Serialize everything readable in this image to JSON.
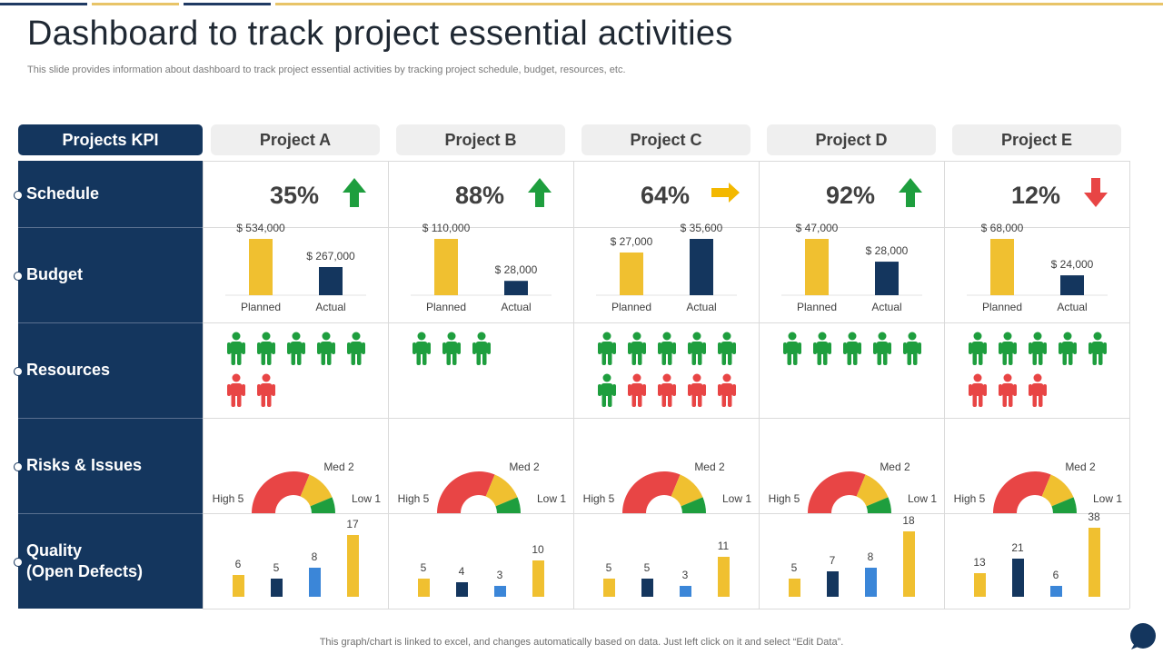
{
  "title": "Dashboard to track project essential activities",
  "subtitle": "This slide provides information about dashboard to track project essential activities by tracking project schedule, budget, resources, etc.",
  "kpi_header": "Projects KPI",
  "row_labels": {
    "schedule": "Schedule",
    "budget": "Budget",
    "resources": "Resources",
    "risks": "Risks & Issues",
    "quality_line1": "Quality",
    "quality_line2": "(Open Defects)"
  },
  "footnote": "This graph/chart is linked to excel,  and changes automatically based on data. Just left click on it and select “Edit Data”.",
  "colors": {
    "navy": "#14365e",
    "yellow": "#f0c030",
    "green": "#1e9e3e",
    "red": "#e84545",
    "arrow_yellow": "#f3b800",
    "blue": "#3b86d8",
    "topbar_navy": "#1f3a63",
    "topbar_gold": "#e8c468"
  },
  "icons": {
    "schedule_up": "arrow-up-icon",
    "schedule_right": "arrow-right-icon",
    "schedule_down": "arrow-down-icon",
    "person": "person-icon",
    "help": "chat-bubble-icon"
  },
  "chart_data": {
    "type": "table",
    "projects": [
      {
        "name": "Project A",
        "schedule": {
          "value": 35,
          "label": "35%",
          "trend": "up"
        },
        "budget": {
          "categories": [
            "Planned",
            "Actual"
          ],
          "values": [
            534000,
            267000
          ],
          "labels": [
            "$ 534,000",
            "$ 267,000"
          ]
        },
        "resources": {
          "available": 5,
          "unavailable": 2
        },
        "risks": {
          "labels": [
            "High 5",
            "Med 2",
            "Low 1"
          ],
          "values": [
            5,
            2,
            1
          ]
        },
        "quality": {
          "values": [
            6,
            5,
            8,
            17
          ]
        }
      },
      {
        "name": "Project B",
        "schedule": {
          "value": 88,
          "label": "88%",
          "trend": "up"
        },
        "budget": {
          "categories": [
            "Planned",
            "Actual"
          ],
          "values": [
            110000,
            28000
          ],
          "labels": [
            "$ 110,000",
            "$ 28,000"
          ]
        },
        "resources": {
          "available": 3,
          "unavailable": 0
        },
        "risks": {
          "labels": [
            "High 5",
            "Med 2",
            "Low 1"
          ],
          "values": [
            5,
            2,
            1
          ]
        },
        "quality": {
          "values": [
            5,
            4,
            3,
            10
          ]
        }
      },
      {
        "name": "Project C",
        "schedule": {
          "value": 64,
          "label": "64%",
          "trend": "right"
        },
        "budget": {
          "categories": [
            "Planned",
            "Actual"
          ],
          "values": [
            27000,
            35600
          ],
          "labels": [
            "$ 27,000",
            "$ 35,600"
          ]
        },
        "resources": {
          "available": 6,
          "unavailable": 4
        },
        "risks": {
          "labels": [
            "High 5",
            "Med 2",
            "Low 1"
          ],
          "values": [
            5,
            2,
            1
          ]
        },
        "quality": {
          "values": [
            5,
            5,
            3,
            11
          ]
        }
      },
      {
        "name": "Project D",
        "schedule": {
          "value": 92,
          "label": "92%",
          "trend": "up"
        },
        "budget": {
          "categories": [
            "Planned",
            "Actual"
          ],
          "values": [
            47000,
            28000
          ],
          "labels": [
            "$ 47,000",
            "$ 28,000"
          ]
        },
        "resources": {
          "available": 5,
          "unavailable": 0
        },
        "risks": {
          "labels": [
            "High 5",
            "Med 2",
            "Low 1"
          ],
          "values": [
            5,
            2,
            1
          ]
        },
        "quality": {
          "values": [
            5,
            7,
            8,
            18
          ]
        }
      },
      {
        "name": "Project E",
        "schedule": {
          "value": 12,
          "label": "12%",
          "trend": "down"
        },
        "budget": {
          "categories": [
            "Planned",
            "Actual"
          ],
          "values": [
            68000,
            24000
          ],
          "labels": [
            "$ 68,000",
            "$ 24,000"
          ]
        },
        "resources": {
          "available": 5,
          "unavailable": 3
        },
        "risks": {
          "labels": [
            "High 5",
            "Med 2",
            "Low 1"
          ],
          "values": [
            5,
            2,
            1
          ]
        },
        "quality": {
          "values": [
            13,
            21,
            6,
            38
          ]
        }
      }
    ]
  }
}
